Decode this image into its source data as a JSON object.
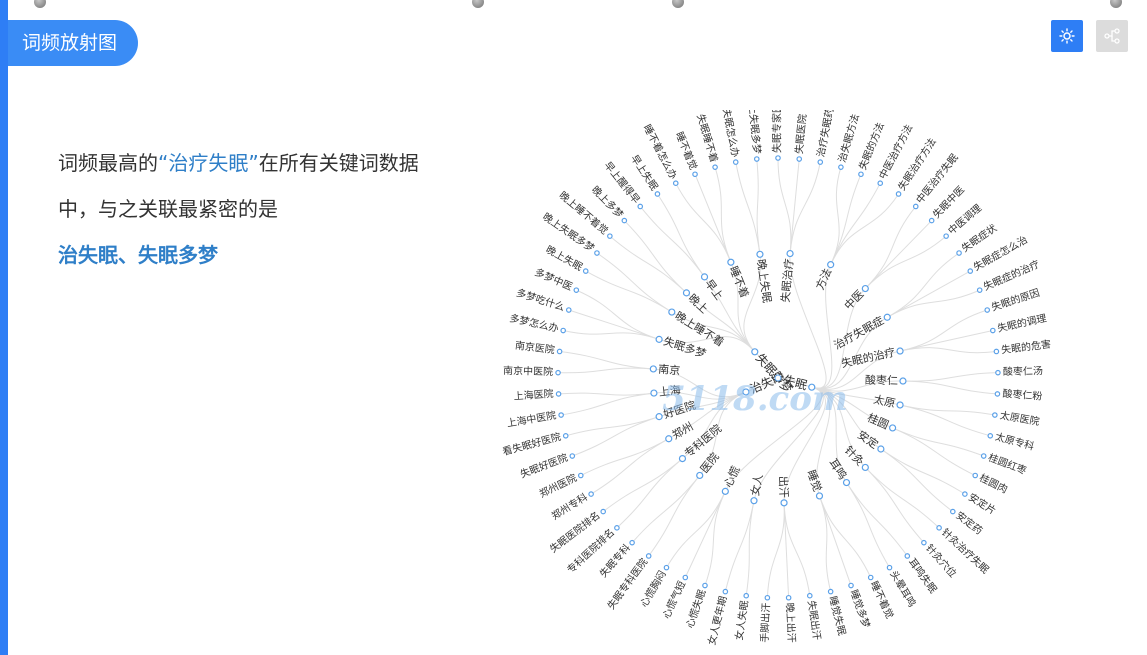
{
  "header": {
    "title": "词频放射图"
  },
  "description": {
    "prefix": "词频最高的",
    "keyword": "“治疗失眠”",
    "middle": "在所有关键词数据中，与之关联最紧密的是",
    "related": "治失眠、失眠多梦"
  },
  "toolbar": {
    "buttons": [
      {
        "icon": "sun-icon",
        "active": true
      },
      {
        "icon": "tree-icon",
        "active": false
      }
    ]
  },
  "watermark": {
    "text": "5118.com"
  },
  "radial": {
    "colors": {
      "accent": "#2e7ef5",
      "node": "#5aa0e8",
      "link": "#dedede",
      "text": "#333333"
    },
    "root": "",
    "branches": [
      {
        "label": "失眠",
        "children": [
          {
            "label": "失眠治疗",
            "leaves": [
              "失眠专家医院",
              "失眠医院",
              "治疗失眠药"
            ]
          },
          {
            "label": "方法",
            "leaves": [
              "治失眠方法",
              "失眠的方法",
              "中医治疗方法",
              "失眠治疗方法"
            ]
          },
          {
            "label": "中医",
            "leaves": [
              "中医治疗失眠",
              "失眠中医",
              "中医调理"
            ]
          },
          {
            "label": "治疗失眠症",
            "leaves": [
              "失眠症状",
              "失眠症怎么治",
              "失眠症的治疗"
            ]
          },
          {
            "label": "失眠的治疗",
            "leaves": [
              "失眠的原因",
              "失眠的调理",
              "失眠的危害"
            ]
          },
          {
            "label": "酸枣仁",
            "leaves": [
              "酸枣仁汤",
              "酸枣仁粉"
            ]
          },
          {
            "label": "太原",
            "leaves": [
              "太原医院",
              "太原专科"
            ]
          },
          {
            "label": "桂圆",
            "leaves": [
              "桂圆红枣",
              "桂圆肉"
            ]
          },
          {
            "label": "安定",
            "leaves": [
              "安定片",
              "安定药"
            ]
          },
          {
            "label": "针灸",
            "leaves": [
              "针灸治疗失眠",
              "针灸穴位"
            ]
          },
          {
            "label": "耳鸣",
            "leaves": [
              "耳鸣失眠",
              "头晕耳鸣"
            ]
          },
          {
            "label": "睡觉",
            "leaves": [
              "睡不着觉",
              "睡觉多梦",
              "睡觉失眠"
            ]
          },
          {
            "label": "出汗",
            "leaves": [
              "失眠出汗",
              "晚上出汗",
              "手脚出汗"
            ]
          },
          {
            "label": "女人",
            "leaves": [
              "女人失眠",
              "女人更年期"
            ]
          },
          {
            "label": "心慌",
            "leaves": [
              "心慌失眠",
              "心慌气短",
              "心慌胸闷"
            ]
          }
        ]
      },
      {
        "label": "治失眠",
        "children": [
          {
            "label": "医院",
            "leaves": [
              "失眠专科医院",
              "失眠专科"
            ]
          },
          {
            "label": "专科医院",
            "leaves": [
              "专科医院排名",
              "失眠医院排名"
            ]
          },
          {
            "label": "郑州",
            "leaves": [
              "郑州专科",
              "郑州医院"
            ]
          },
          {
            "label": "好医院",
            "leaves": [
              "失眠好医院",
              "看失眠好医院"
            ]
          },
          {
            "label": "上海",
            "leaves": [
              "上海中医院",
              "上海医院"
            ]
          },
          {
            "label": "南京",
            "leaves": [
              "南京中医院",
              "南京医院"
            ]
          }
        ]
      },
      {
        "label": "失眠多梦",
        "children": [
          {
            "label": "失眠多梦",
            "leaves": [
              "多梦怎么办",
              "多梦吃什么",
              "多梦中医"
            ]
          },
          {
            "label": "晚上睡不着",
            "leaves": [
              "晚上失眠",
              "晚上失眠多梦"
            ]
          },
          {
            "label": "晚上",
            "leaves": [
              "晚上睡不着觉",
              "晚上多梦"
            ]
          },
          {
            "label": "早上",
            "leaves": [
              "早上醒得早",
              "早上失眠"
            ]
          },
          {
            "label": "睡不着",
            "leaves": [
              "睡不着怎么办",
              "睡不着觉",
              "失眠睡不着"
            ]
          },
          {
            "label": "晚上失眠",
            "leaves": [
              "晚上失眠怎么办",
              "晚上失眠多梦"
            ]
          }
        ]
      }
    ]
  }
}
